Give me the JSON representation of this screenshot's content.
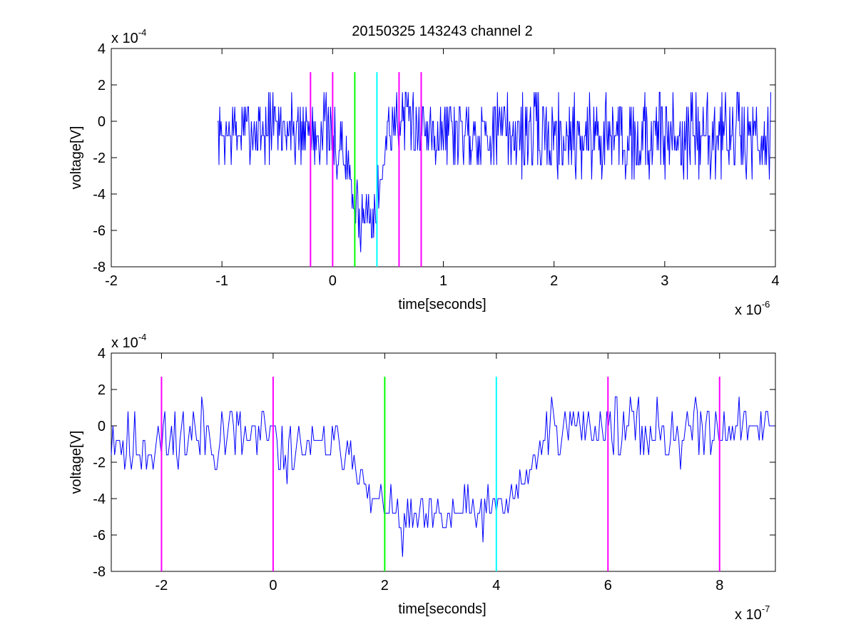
{
  "figure": {
    "title": "20150325 143243 channel 2"
  },
  "chart_data": [
    {
      "type": "line",
      "title": "20150325 143243 channel 2",
      "xlabel": "time[seconds]",
      "ylabel": "voltage[V]",
      "x_exponent": {
        "base": "x 10",
        "power": "-6"
      },
      "y_exponent": {
        "base": "x 10",
        "power": "-4"
      },
      "xlim": [
        -2,
        4
      ],
      "ylim": [
        -8,
        4
      ],
      "x_ticks": [
        -2,
        -1,
        0,
        1,
        2,
        3,
        4
      ],
      "y_ticks": [
        -8,
        -6,
        -4,
        -2,
        0,
        2,
        4
      ],
      "x_tick_labels": [
        "-2",
        "-1",
        "0",
        "1",
        "2",
        "3",
        "4"
      ],
      "y_tick_labels": [
        "-8",
        "-6",
        "-4",
        "-2",
        "0",
        "2",
        "4"
      ],
      "grid": false,
      "series": [
        {
          "color": "#0000ff",
          "x_start": -1.04,
          "x_end": 3.96,
          "envelope": [
            {
              "x": -1.04,
              "low": -2.4,
              "high": 0.8
            },
            {
              "x": -0.5,
              "low": -2.4,
              "high": 1.6
            },
            {
              "x": -0.08,
              "low": -2.4,
              "high": 1.6
            },
            {
              "x": 0.0,
              "low": -3.2,
              "high": 0.8
            },
            {
              "x": 0.1,
              "low": -3.2,
              "high": 0.0
            },
            {
              "x": 0.15,
              "low": -4.0,
              "high": -1.6
            },
            {
              "x": 0.2,
              "low": -6.0,
              "high": -3.6
            },
            {
              "x": 0.25,
              "low": -7.2,
              "high": -3.2
            },
            {
              "x": 0.3,
              "low": -6.4,
              "high": -3.6
            },
            {
              "x": 0.36,
              "low": -6.4,
              "high": -3.2
            },
            {
              "x": 0.42,
              "low": -5.6,
              "high": -2.4
            },
            {
              "x": 0.47,
              "low": -4.0,
              "high": -0.8
            },
            {
              "x": 0.5,
              "low": -1.6,
              "high": 1.6
            },
            {
              "x": 1.0,
              "low": -2.4,
              "high": 1.6
            },
            {
              "x": 2.0,
              "low": -3.2,
              "high": 1.6
            },
            {
              "x": 3.0,
              "low": -3.2,
              "high": 1.6
            },
            {
              "x": 3.96,
              "low": -3.2,
              "high": 1.6
            }
          ]
        }
      ],
      "vertical_markers": [
        {
          "x": -0.2,
          "color": "#ff00ff"
        },
        {
          "x": 0.0,
          "color": "#ff00ff"
        },
        {
          "x": 0.2,
          "color": "#00ff00"
        },
        {
          "x": 0.4,
          "color": "#00ffff"
        },
        {
          "x": 0.6,
          "color": "#ff00ff"
        },
        {
          "x": 0.8,
          "color": "#ff00ff"
        }
      ],
      "marker_range": [
        -8,
        2.7
      ]
    },
    {
      "type": "line",
      "xlabel": "time[seconds]",
      "ylabel": "voltage[V]",
      "x_exponent": {
        "base": "x 10",
        "power": "-7"
      },
      "y_exponent": {
        "base": "x 10",
        "power": "-4"
      },
      "xlim": [
        -2.9,
        9
      ],
      "ylim": [
        -8,
        4
      ],
      "x_ticks": [
        -2,
        0,
        2,
        4,
        6,
        8
      ],
      "y_ticks": [
        -8,
        -6,
        -4,
        -2,
        0,
        2,
        4
      ],
      "x_tick_labels": [
        "-2",
        "0",
        "2",
        "4",
        "6",
        "8"
      ],
      "y_tick_labels": [
        "-8",
        "-6",
        "-4",
        "-2",
        "0",
        "2",
        "4"
      ],
      "grid": false,
      "series": [
        {
          "color": "#0000ff",
          "x_start": -2.9,
          "x_end": 9,
          "envelope": [
            {
              "x": -2.9,
              "low": -2.4,
              "high": 1.6
            },
            {
              "x": -2.8,
              "low": -2.4,
              "high": 1.6
            },
            {
              "x": -2.7,
              "low": -3.2,
              "high": 0.8
            },
            {
              "x": -1.0,
              "low": -2.4,
              "high": 1.6
            },
            {
              "x": 0.0,
              "low": -2.4,
              "high": 0.8
            },
            {
              "x": 0.15,
              "low": -3.2,
              "high": 0.0
            },
            {
              "x": 0.5,
              "low": -2.4,
              "high": 0.0
            },
            {
              "x": 1.0,
              "low": -2.4,
              "high": 0.0
            },
            {
              "x": 1.45,
              "low": -2.4,
              "high": 0.0
            },
            {
              "x": 1.55,
              "low": -4.0,
              "high": -1.6
            },
            {
              "x": 1.75,
              "low": -4.8,
              "high": -3.6
            },
            {
              "x": 2.0,
              "low": -4.8,
              "high": -3.2
            },
            {
              "x": 2.25,
              "low": -7.2,
              "high": -4.0
            },
            {
              "x": 2.6,
              "low": -6.4,
              "high": -3.6
            },
            {
              "x": 3.0,
              "low": -6.4,
              "high": -4.0
            },
            {
              "x": 3.4,
              "low": -6.4,
              "high": -3.2
            },
            {
              "x": 3.8,
              "low": -6.0,
              "high": -3.6
            },
            {
              "x": 4.2,
              "low": -5.6,
              "high": -3.2
            },
            {
              "x": 4.5,
              "low": -4.0,
              "high": -2.0
            },
            {
              "x": 4.75,
              "low": -2.4,
              "high": -0.8
            },
            {
              "x": 4.9,
              "low": -1.6,
              "high": 1.6
            },
            {
              "x": 5.5,
              "low": -0.8,
              "high": 0.8
            },
            {
              "x": 6.0,
              "low": -1.6,
              "high": 1.6
            },
            {
              "x": 7.0,
              "low": -2.4,
              "high": 1.6
            },
            {
              "x": 8.0,
              "low": -1.6,
              "high": 1.6
            },
            {
              "x": 9.0,
              "low": -0.8,
              "high": 0.8
            }
          ]
        }
      ],
      "vertical_markers": [
        {
          "x": -2,
          "color": "#ff00ff"
        },
        {
          "x": 0,
          "color": "#ff00ff"
        },
        {
          "x": 2,
          "color": "#00ff00"
        },
        {
          "x": 4,
          "color": "#00ffff"
        },
        {
          "x": 6,
          "color": "#ff00ff"
        },
        {
          "x": 8,
          "color": "#ff00ff"
        }
      ],
      "marker_range": [
        -8,
        2.7
      ]
    }
  ]
}
